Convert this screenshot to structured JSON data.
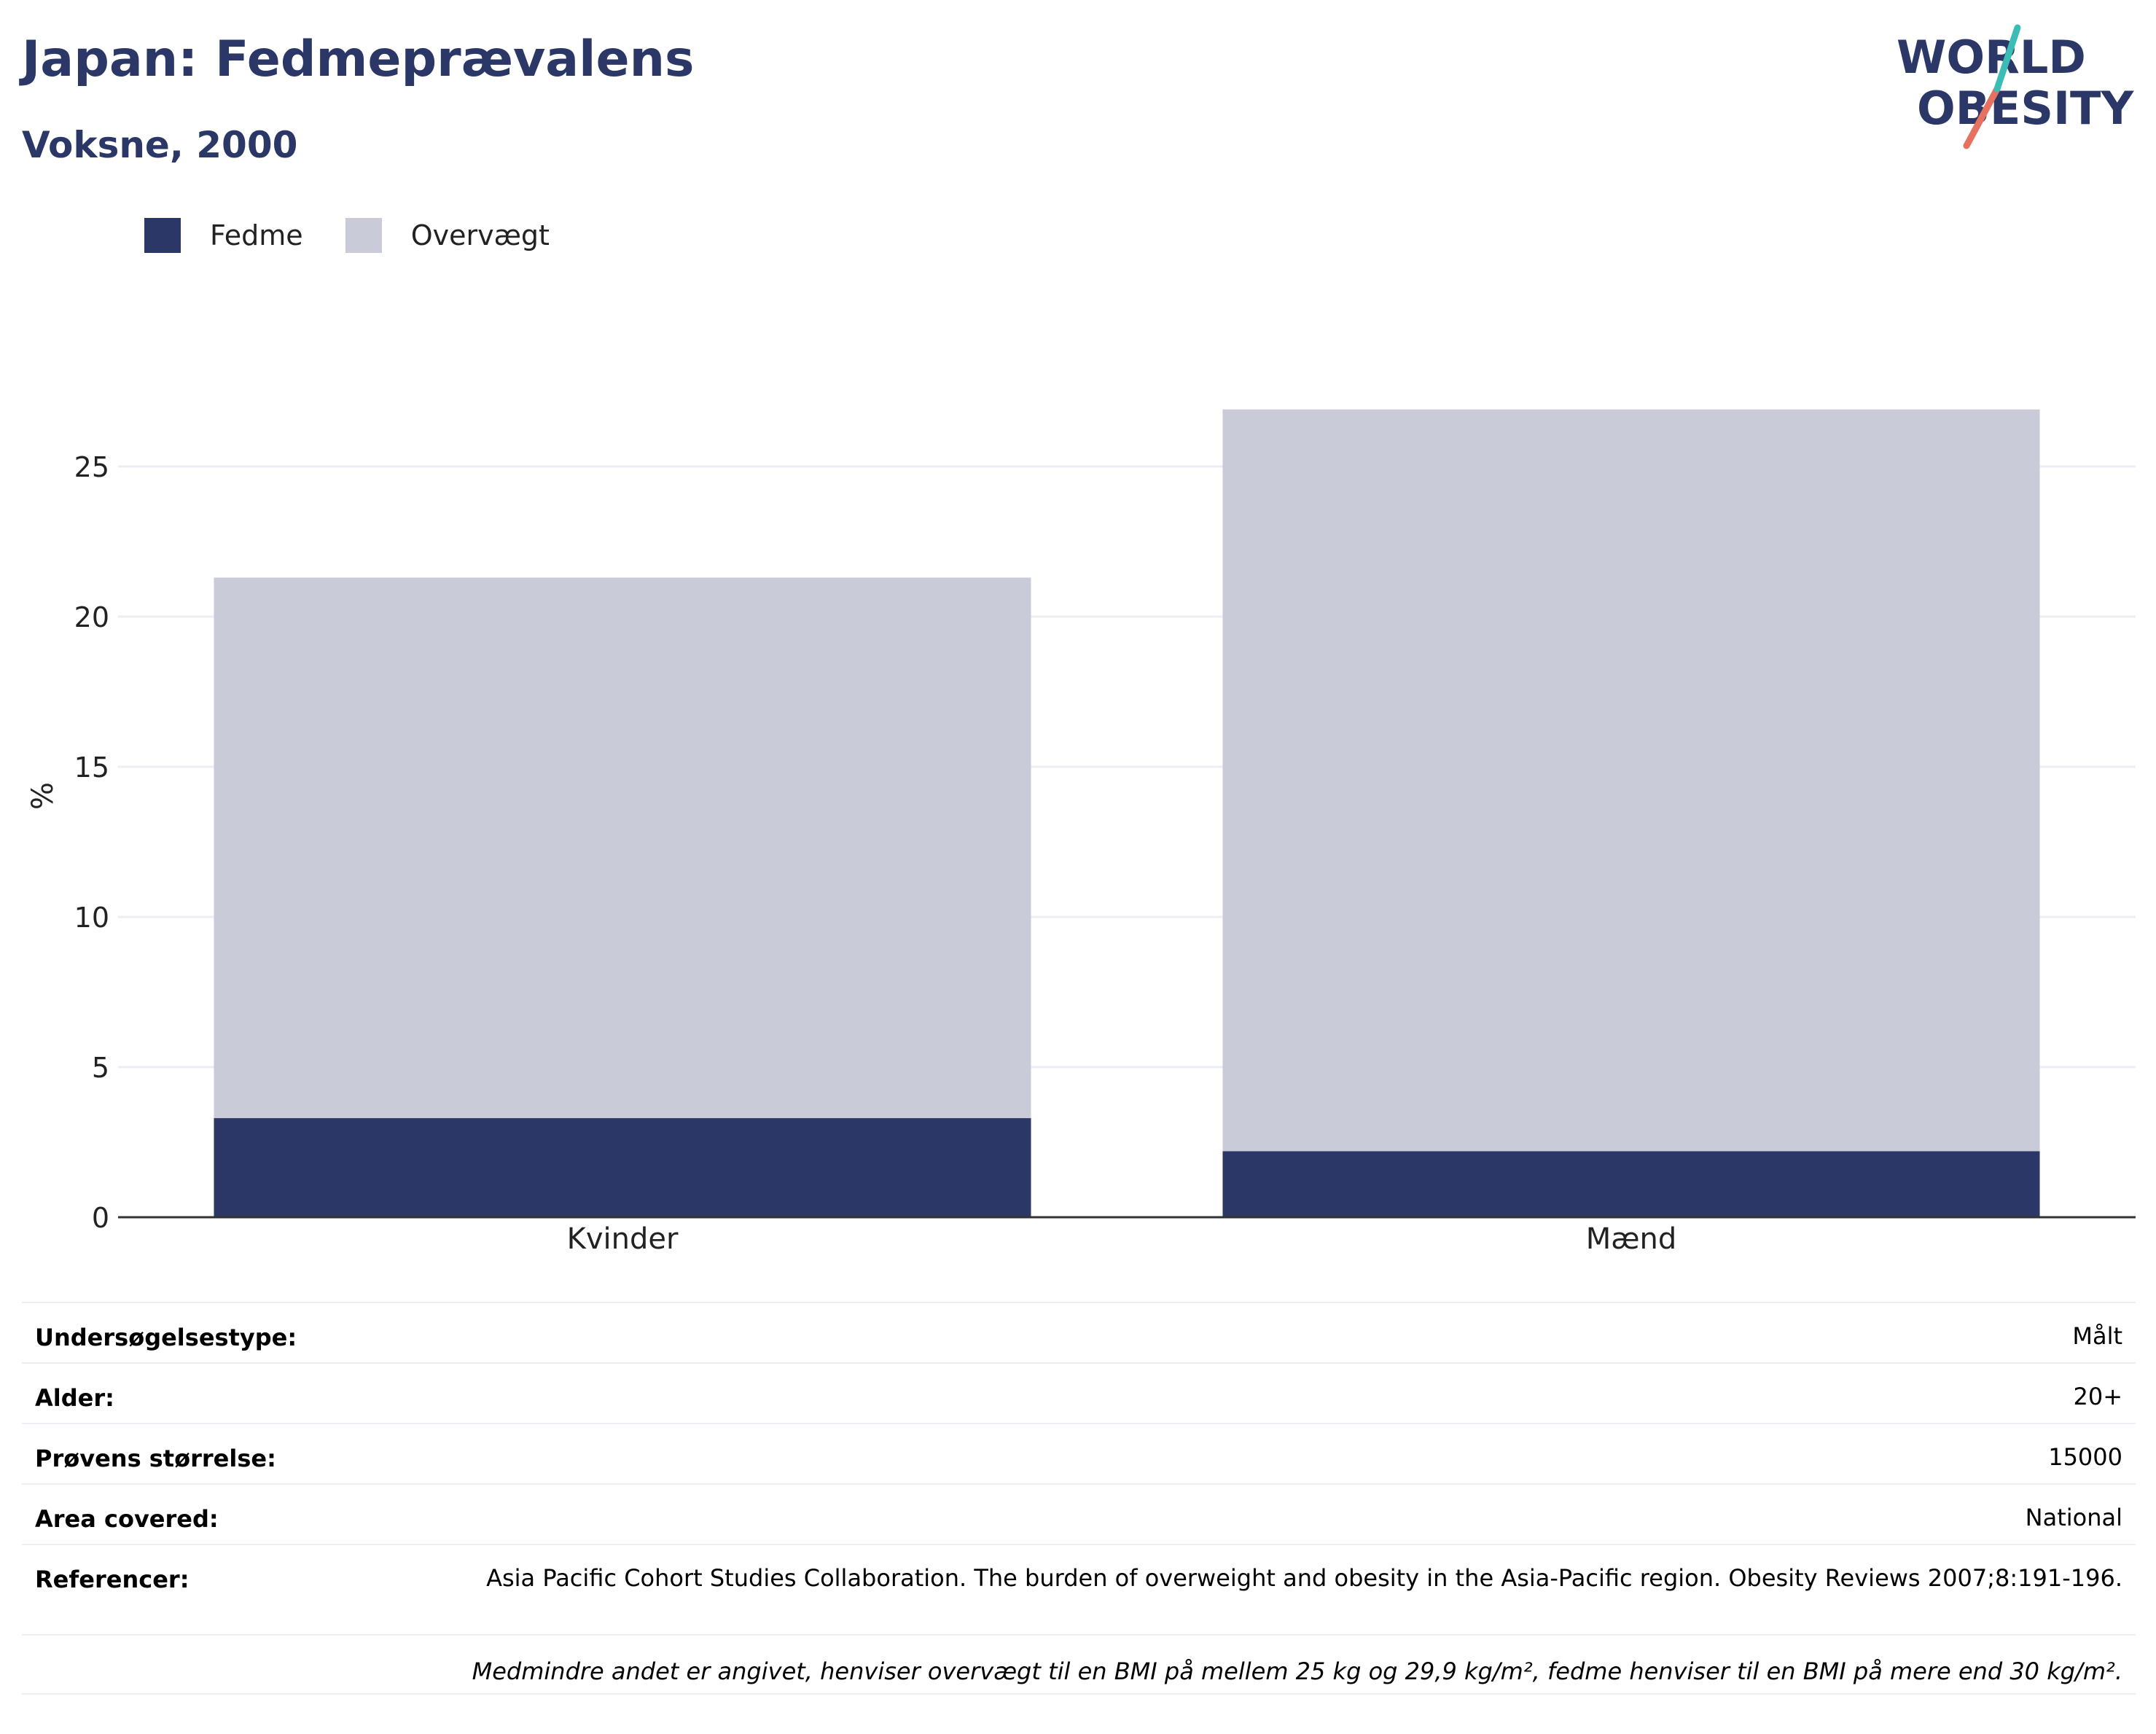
{
  "header": {
    "title": "Japan: Fedmeprævalens",
    "subtitle": "Voksne, 2000"
  },
  "logo": {
    "line1": "WORLD",
    "line2": "OBESITY"
  },
  "legend": [
    {
      "label": "Fedme",
      "color": "#2b3766"
    },
    {
      "label": "Overvægt",
      "color": "#c9ccd8"
    }
  ],
  "chart_data": {
    "type": "bar",
    "stacked": true,
    "categories": [
      "Kvinder",
      "Mænd"
    ],
    "series": [
      {
        "name": "Fedme",
        "values": [
          3.3,
          2.2
        ],
        "color": "#2b3766"
      },
      {
        "name": "Overvægt",
        "values": [
          18.0,
          24.7
        ],
        "color": "#c9ccd8"
      }
    ],
    "ylabel": "%",
    "ylim": [
      0,
      28
    ],
    "yticks": [
      0,
      5,
      10,
      15,
      20,
      25
    ],
    "grid": true,
    "legend_position": "top-left"
  },
  "info": [
    {
      "label": "Undersøgelsestype:",
      "value": "Målt"
    },
    {
      "label": "Alder:",
      "value": "20+"
    },
    {
      "label": "Prøvens størrelse:",
      "value": "15000"
    },
    {
      "label": "Area covered:",
      "value": "National"
    },
    {
      "label": "Referencer:",
      "value": "Asia Pacific Cohort Studies Collaboration. The burden of overweight and obesity in the Asia-Pacific region. Obesity Reviews 2007;8:191-196."
    }
  ],
  "footnote": "Medmindre andet er angivet, henviser overvægt til en BMI på mellem 25 kg og 29,9 kg/m², fedme henviser til en BMI på mere end 30 kg/m²."
}
